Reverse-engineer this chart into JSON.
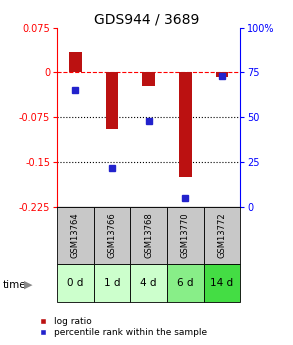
{
  "title": "GDS944 / 3689",
  "samples": [
    "GSM13764",
    "GSM13766",
    "GSM13768",
    "GSM13770",
    "GSM13772"
  ],
  "time_labels": [
    "0 d",
    "1 d",
    "4 d",
    "6 d",
    "14 d"
  ],
  "log_ratios": [
    0.035,
    -0.095,
    -0.022,
    -0.175,
    -0.008
  ],
  "percentile_ranks": [
    65,
    22,
    48,
    5,
    73
  ],
  "ylim_left": [
    -0.225,
    0.075
  ],
  "ylim_right": [
    0,
    100
  ],
  "yticks_left": [
    0.075,
    0,
    -0.075,
    -0.15,
    -0.225
  ],
  "yticks_right": [
    100,
    75,
    50,
    25,
    0
  ],
  "bar_color": "#bb1111",
  "dot_color": "#2222cc",
  "sample_label_bg": "#c8c8c8",
  "time_colors": [
    "#ccffcc",
    "#ccffcc",
    "#ccffcc",
    "#88ee88",
    "#44dd44"
  ],
  "legend_bar_label": "log ratio",
  "legend_dot_label": "percentile rank within the sample",
  "bar_width": 0.35,
  "title_fontsize": 10,
  "tick_fontsize": 7,
  "sample_fontsize": 6,
  "time_fontsize": 7.5,
  "legend_fontsize": 6.5
}
